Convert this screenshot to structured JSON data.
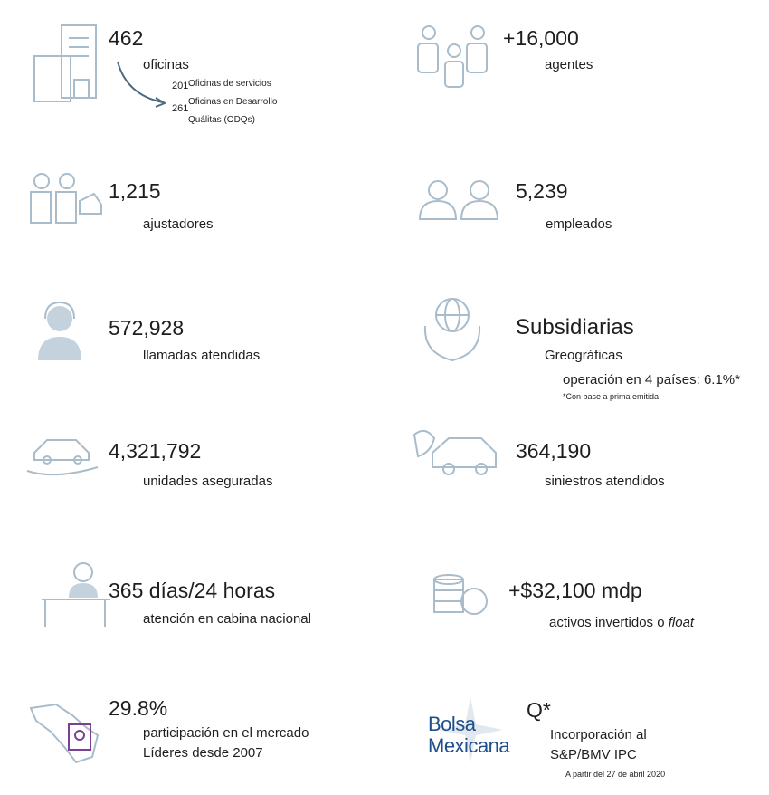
{
  "left": [
    {
      "value": "462",
      "label": "oficinas",
      "details": [
        {
          "count": "201",
          "text": [
            "Oficinas de servicios"
          ]
        },
        {
          "count": "261",
          "text": [
            "Oficinas en Desarrollo",
            "Quálitas (ODQs)"
          ]
        }
      ]
    },
    {
      "value": "1,215",
      "label": "ajustadores"
    },
    {
      "value": "572,928",
      "label": "llamadas atendidas"
    },
    {
      "value": "4,321,792",
      "label": "unidades aseguradas"
    },
    {
      "value": "365 días/24 horas",
      "label": "atención en cabina nacional"
    },
    {
      "value": "29.8%",
      "label": "participación en el mercado",
      "label2": "Líderes desde 2007"
    }
  ],
  "right": [
    {
      "value": "+16,000",
      "label": "agentes"
    },
    {
      "value": "5,239",
      "label": "empleados"
    },
    {
      "value": "Subsidiarias",
      "label": "Greográficas",
      "label2": "operación en 4 países: 6.1%*",
      "note": "*Con base a prima emitida"
    },
    {
      "value": "364,190",
      "label": "siniestros atendidos"
    },
    {
      "value": "+$32,100 mdp",
      "label": "activos invertidos o",
      "label_italic": "float"
    },
    {
      "logo": [
        "Bolsa",
        "Mexicana"
      ],
      "value": "Q*",
      "label": "Incorporación al",
      "label2": "S&P/BMV IPC",
      "note": "A partir del 27 de abril 2020"
    }
  ]
}
